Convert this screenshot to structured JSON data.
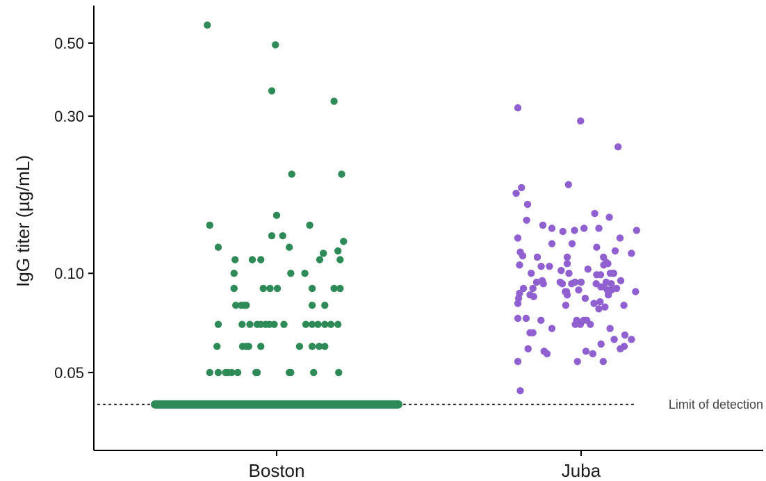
{
  "chart_data": {
    "type": "scatter",
    "title": "",
    "xlabel": "",
    "ylabel": "IgG titer (µg/mL)",
    "y_scale": "log",
    "ylim": [
      0.029,
      0.65
    ],
    "y_ticks": [
      0.05,
      0.1,
      0.3,
      0.5
    ],
    "y_tick_labels": [
      "0.05",
      "0.10",
      "0.30",
      "0.50"
    ],
    "categories": [
      "Boston",
      "Juba"
    ],
    "grid": false,
    "legend": "none",
    "limit_of_detection": {
      "value": 0.04,
      "label": "Limit of detection"
    },
    "series": [
      {
        "category": "Boston",
        "color": "#2e8b57",
        "below_detection": true,
        "points": [
          {
            "j": -0.285,
            "y": 0.567
          },
          {
            "j": -0.005,
            "y": 0.494
          },
          {
            "j": -0.02,
            "y": 0.358
          },
          {
            "j": 0.236,
            "y": 0.333
          },
          {
            "j": 0.062,
            "y": 0.2
          },
          {
            "j": 0.267,
            "y": 0.2
          },
          {
            "j": 0.0,
            "y": 0.15
          },
          {
            "j": -0.275,
            "y": 0.14
          },
          {
            "j": -0.02,
            "y": 0.13
          },
          {
            "j": 0.025,
            "y": 0.13
          },
          {
            "j": 0.136,
            "y": 0.14
          },
          {
            "j": 0.275,
            "y": 0.125
          },
          {
            "j": -0.24,
            "y": 0.12
          },
          {
            "j": 0.052,
            "y": 0.12
          },
          {
            "j": 0.192,
            "y": 0.115
          },
          {
            "j": 0.252,
            "y": 0.117
          },
          {
            "j": -0.171,
            "y": 0.11
          },
          {
            "j": -0.1,
            "y": 0.11
          },
          {
            "j": -0.065,
            "y": 0.11
          },
          {
            "j": 0.177,
            "y": 0.11
          },
          {
            "j": 0.261,
            "y": 0.11
          },
          {
            "j": -0.175,
            "y": 0.1
          },
          {
            "j": 0.058,
            "y": 0.1
          },
          {
            "j": 0.116,
            "y": 0.1
          },
          {
            "j": -0.175,
            "y": 0.09
          },
          {
            "j": -0.055,
            "y": 0.09
          },
          {
            "j": -0.027,
            "y": 0.09
          },
          {
            "j": 0.003,
            "y": 0.09
          },
          {
            "j": 0.146,
            "y": 0.09
          },
          {
            "j": 0.236,
            "y": 0.09
          },
          {
            "j": 0.261,
            "y": 0.09
          },
          {
            "j": -0.168,
            "y": 0.08
          },
          {
            "j": -0.145,
            "y": 0.08
          },
          {
            "j": -0.125,
            "y": 0.08
          },
          {
            "j": -0.135,
            "y": 0.08
          },
          {
            "j": 0.146,
            "y": 0.08
          },
          {
            "j": 0.198,
            "y": 0.08
          },
          {
            "j": -0.24,
            "y": 0.07
          },
          {
            "j": -0.142,
            "y": 0.07
          },
          {
            "j": -0.11,
            "y": 0.07
          },
          {
            "j": -0.08,
            "y": 0.07
          },
          {
            "j": -0.065,
            "y": 0.07
          },
          {
            "j": -0.045,
            "y": 0.07
          },
          {
            "j": -0.03,
            "y": 0.07
          },
          {
            "j": -0.01,
            "y": 0.07
          },
          {
            "j": 0.03,
            "y": 0.07
          },
          {
            "j": 0.12,
            "y": 0.07
          },
          {
            "j": 0.146,
            "y": 0.07
          },
          {
            "j": 0.17,
            "y": 0.07
          },
          {
            "j": 0.198,
            "y": 0.07
          },
          {
            "j": 0.223,
            "y": 0.07
          },
          {
            "j": 0.252,
            "y": 0.07
          },
          {
            "j": -0.245,
            "y": 0.06
          },
          {
            "j": -0.14,
            "y": 0.06
          },
          {
            "j": -0.124,
            "y": 0.06
          },
          {
            "j": -0.115,
            "y": 0.06
          },
          {
            "j": -0.065,
            "y": 0.06
          },
          {
            "j": 0.094,
            "y": 0.06
          },
          {
            "j": 0.146,
            "y": 0.06
          },
          {
            "j": 0.175,
            "y": 0.06
          },
          {
            "j": 0.198,
            "y": 0.06
          },
          {
            "j": -0.275,
            "y": 0.05
          },
          {
            "j": -0.24,
            "y": 0.05
          },
          {
            "j": -0.21,
            "y": 0.05
          },
          {
            "j": -0.2,
            "y": 0.05
          },
          {
            "j": -0.185,
            "y": 0.05
          },
          {
            "j": -0.16,
            "y": 0.05
          },
          {
            "j": -0.085,
            "y": 0.05
          },
          {
            "j": -0.08,
            "y": 0.05
          },
          {
            "j": 0.052,
            "y": 0.05
          },
          {
            "j": 0.058,
            "y": 0.05
          },
          {
            "j": 0.152,
            "y": 0.05
          },
          {
            "j": 0.255,
            "y": 0.05
          }
        ]
      },
      {
        "category": "Juba",
        "color": "#9160d0",
        "below_detection": false,
        "points": [
          {
            "j": -0.26,
            "y": 0.318
          },
          {
            "j": -0.002,
            "y": 0.29
          },
          {
            "j": 0.152,
            "y": 0.242
          },
          {
            "j": -0.052,
            "y": 0.186
          },
          {
            "j": -0.245,
            "y": 0.182
          },
          {
            "j": -0.267,
            "y": 0.175
          },
          {
            "j": -0.22,
            "y": 0.162
          },
          {
            "j": 0.056,
            "y": 0.152
          },
          {
            "j": 0.116,
            "y": 0.148
          },
          {
            "j": -0.224,
            "y": 0.145
          },
          {
            "j": -0.157,
            "y": 0.14
          },
          {
            "j": -0.12,
            "y": 0.137
          },
          {
            "j": -0.075,
            "y": 0.134
          },
          {
            "j": -0.027,
            "y": 0.135
          },
          {
            "j": 0.012,
            "y": 0.137
          },
          {
            "j": 0.073,
            "y": 0.137
          },
          {
            "j": 0.228,
            "y": 0.135
          },
          {
            "j": -0.26,
            "y": 0.128
          },
          {
            "j": 0.16,
            "y": 0.128
          },
          {
            "j": -0.12,
            "y": 0.123
          },
          {
            "j": -0.037,
            "y": 0.123
          },
          {
            "j": 0.064,
            "y": 0.12
          },
          {
            "j": 0.14,
            "y": 0.117
          },
          {
            "j": -0.25,
            "y": 0.116
          },
          {
            "j": -0.24,
            "y": 0.113
          },
          {
            "j": 0.207,
            "y": 0.115
          },
          {
            "j": -0.18,
            "y": 0.112
          },
          {
            "j": -0.057,
            "y": 0.112
          },
          {
            "j": -0.057,
            "y": 0.107
          },
          {
            "j": 0.092,
            "y": 0.112
          },
          {
            "j": 0.104,
            "y": 0.108
          },
          {
            "j": 0.093,
            "y": 0.106
          },
          {
            "j": 0.11,
            "y": 0.107
          },
          {
            "j": -0.253,
            "y": 0.106
          },
          {
            "j": -0.164,
            "y": 0.105
          },
          {
            "j": -0.13,
            "y": 0.105
          },
          {
            "j": -0.082,
            "y": 0.102
          },
          {
            "j": 0.028,
            "y": 0.103
          },
          {
            "j": 0.064,
            "y": 0.099
          },
          {
            "j": 0.08,
            "y": 0.099
          },
          {
            "j": 0.131,
            "y": 0.1
          },
          {
            "j": 0.134,
            "y": 0.1
          },
          {
            "j": 0.12,
            "y": 0.1
          },
          {
            "j": -0.205,
            "y": 0.1
          },
          {
            "j": -0.05,
            "y": 0.1
          },
          {
            "j": -0.16,
            "y": 0.095
          },
          {
            "j": -0.183,
            "y": 0.094
          },
          {
            "j": -0.155,
            "y": 0.093
          },
          {
            "j": -0.077,
            "y": 0.093
          },
          {
            "j": -0.039,
            "y": 0.093
          },
          {
            "j": -0.025,
            "y": 0.094
          },
          {
            "j": -0.086,
            "y": 0.094
          },
          {
            "j": 0.0,
            "y": 0.094
          },
          {
            "j": 0.062,
            "y": 0.093
          },
          {
            "j": 0.103,
            "y": 0.094
          },
          {
            "j": 0.124,
            "y": 0.093
          },
          {
            "j": 0.163,
            "y": 0.095
          },
          {
            "j": -0.198,
            "y": 0.09
          },
          {
            "j": -0.237,
            "y": 0.09
          },
          {
            "j": -0.253,
            "y": 0.087
          },
          {
            "j": -0.06,
            "y": 0.088
          },
          {
            "j": -0.065,
            "y": 0.088
          },
          {
            "j": -0.01,
            "y": 0.089
          },
          {
            "j": 0.081,
            "y": 0.091
          },
          {
            "j": 0.092,
            "y": 0.091
          },
          {
            "j": 0.108,
            "y": 0.089
          },
          {
            "j": 0.125,
            "y": 0.089
          },
          {
            "j": 0.146,
            "y": 0.09
          },
          {
            "j": 0.224,
            "y": 0.088
          },
          {
            "j": -0.21,
            "y": 0.086
          },
          {
            "j": -0.257,
            "y": 0.084
          },
          {
            "j": -0.195,
            "y": 0.085
          },
          {
            "j": -0.057,
            "y": 0.086
          },
          {
            "j": 0.017,
            "y": 0.084
          },
          {
            "j": 0.112,
            "y": 0.086
          },
          {
            "j": 0.078,
            "y": 0.082
          },
          {
            "j": 0.053,
            "y": 0.081
          },
          {
            "j": -0.26,
            "y": 0.081
          },
          {
            "j": -0.063,
            "y": 0.08
          },
          {
            "j": 0.073,
            "y": 0.078
          },
          {
            "j": 0.098,
            "y": 0.079
          },
          {
            "j": 0.176,
            "y": 0.08
          },
          {
            "j": -0.26,
            "y": 0.073
          },
          {
            "j": -0.226,
            "y": 0.073
          },
          {
            "j": -0.165,
            "y": 0.072
          },
          {
            "j": -0.018,
            "y": 0.072
          },
          {
            "j": 0.011,
            "y": 0.072
          },
          {
            "j": -0.003,
            "y": 0.07
          },
          {
            "j": 0.023,
            "y": 0.072
          },
          {
            "j": 0.119,
            "y": 0.068
          },
          {
            "j": -0.024,
            "y": 0.07
          },
          {
            "j": 0.038,
            "y": 0.07
          },
          {
            "j": -0.21,
            "y": 0.066
          },
          {
            "j": -0.12,
            "y": 0.068
          },
          {
            "j": 0.18,
            "y": 0.065
          },
          {
            "j": -0.26,
            "y": 0.054
          },
          {
            "j": 0.091,
            "y": 0.054
          },
          {
            "j": 0.136,
            "y": 0.063
          },
          {
            "j": -0.015,
            "y": 0.054
          },
          {
            "j": 0.177,
            "y": 0.06
          },
          {
            "j": -0.218,
            "y": 0.059
          },
          {
            "j": -0.198,
            "y": 0.066
          },
          {
            "j": 0.207,
            "y": 0.063
          },
          {
            "j": 0.082,
            "y": 0.061
          },
          {
            "j": 0.161,
            "y": 0.059
          },
          {
            "j": 0.048,
            "y": 0.057
          },
          {
            "j": 0.02,
            "y": 0.058
          },
          {
            "j": -0.152,
            "y": 0.058
          },
          {
            "j": -0.14,
            "y": 0.057
          },
          {
            "j": -0.25,
            "y": 0.044
          }
        ]
      }
    ]
  }
}
